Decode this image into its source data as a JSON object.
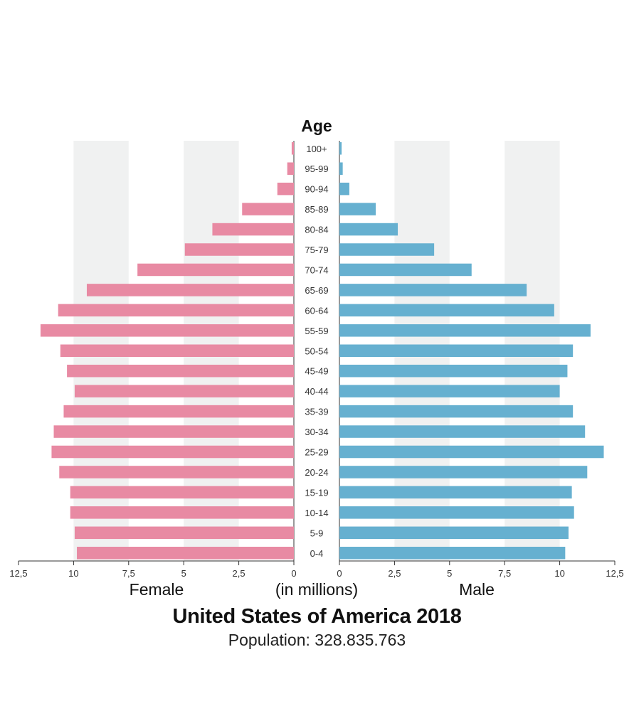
{
  "chart_data": {
    "type": "bar",
    "orientation": "horizontal-population-pyramid",
    "title": "United States of America 2018",
    "subtitle": "Population: 328.835.763",
    "age_heading": "Age",
    "unit_label": "(in millions)",
    "left_label": "Female",
    "right_label": "Male",
    "categories": [
      "0-4",
      "5-9",
      "10-14",
      "15-19",
      "20-24",
      "25-29",
      "30-34",
      "35-39",
      "40-44",
      "45-49",
      "50-54",
      "55-59",
      "60-64",
      "65-69",
      "70-74",
      "75-79",
      "80-84",
      "85-89",
      "90-94",
      "95-99",
      "100+"
    ],
    "series": [
      {
        "name": "Female",
        "color": "#e88aa3",
        "values": [
          9.85,
          9.95,
          10.15,
          10.15,
          10.65,
          11.0,
          10.9,
          10.45,
          9.95,
          10.3,
          10.6,
          11.5,
          10.7,
          9.4,
          7.1,
          4.95,
          3.7,
          2.35,
          0.75,
          0.3,
          0.1
        ]
      },
      {
        "name": "Male",
        "color": "#66b0d0",
        "values": [
          10.25,
          10.4,
          10.65,
          10.55,
          11.25,
          12.0,
          11.15,
          10.6,
          10.0,
          10.35,
          10.6,
          11.4,
          9.75,
          8.5,
          6.0,
          4.3,
          2.65,
          1.65,
          0.45,
          0.15,
          0.1
        ]
      }
    ],
    "xlim": [
      0,
      12.5
    ],
    "ticks": [
      "0",
      "2,5",
      "5",
      "7,5",
      "10",
      "12,5"
    ],
    "grid": "alternating-bands"
  }
}
